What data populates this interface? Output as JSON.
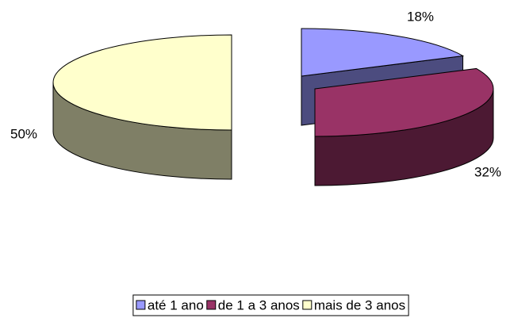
{
  "chart_data": {
    "type": "pie3d",
    "categories": [
      "até 1 ano",
      "de 1 a 3 anos",
      "mais de 3 anos"
    ],
    "values": [
      18,
      32,
      50
    ],
    "value_labels": [
      "18%",
      "32%",
      "50%"
    ],
    "colors": [
      "#9999ff",
      "#993366",
      "#ffffcc"
    ],
    "legend": "bottom"
  }
}
